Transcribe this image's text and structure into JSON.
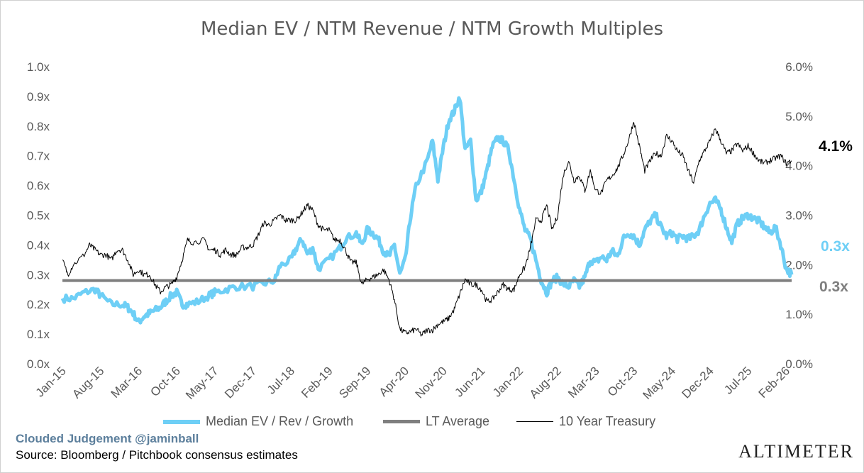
{
  "chart_data": {
    "type": "line",
    "title": "Median EV / NTM Revenue / NTM Growth Multiples",
    "x_tick_labels": [
      "Jan-15",
      "Aug-15",
      "Mar-16",
      "Oct-16",
      "May-17",
      "Dec-17",
      "Jul-18",
      "Feb-19",
      "Sep-19",
      "Apr-20",
      "Nov-20",
      "Jun-21",
      "Jan-22",
      "Aug-22",
      "Mar-23",
      "Oct-23",
      "May-24",
      "Dec-24",
      "Jul-25",
      "Feb-26"
    ],
    "x_range": [
      "Jan-15",
      "Mar-26"
    ],
    "y_left": {
      "range": [
        0,
        1.0
      ],
      "tick_labels": [
        "0.0x",
        "0.1x",
        "0.2x",
        "0.3x",
        "0.4x",
        "0.5x",
        "0.6x",
        "0.7x",
        "0.8x",
        "0.9x",
        "1.0x"
      ]
    },
    "y_right": {
      "range": [
        0,
        6.0
      ],
      "tick_labels": [
        "0.0%",
        "1.0%",
        "2.0%",
        "3.0%",
        "4.0%",
        "5.0%",
        "6.0%"
      ]
    },
    "grid": false,
    "legend_position": "bottom",
    "series": [
      {
        "name": "Median EV / Rev / Growth",
        "axis": "left",
        "color": "#6ecff6",
        "points": [
          [
            "Jan-15",
            0.22
          ],
          [
            "Mar-15",
            0.22
          ],
          [
            "May-15",
            0.24
          ],
          [
            "Jul-15",
            0.25
          ],
          [
            "Aug-15",
            0.23
          ],
          [
            "Oct-15",
            0.2
          ],
          [
            "Dec-15",
            0.2
          ],
          [
            "Jan-16",
            0.19
          ],
          [
            "Feb-16",
            0.17
          ],
          [
            "Mar-16",
            0.14
          ],
          [
            "Apr-16",
            0.16
          ],
          [
            "May-16",
            0.17
          ],
          [
            "Jun-16",
            0.18
          ],
          [
            "Jul-16",
            0.19
          ],
          [
            "Aug-16",
            0.21
          ],
          [
            "Sep-16",
            0.23
          ],
          [
            "Oct-16",
            0.24
          ],
          [
            "Nov-16",
            0.2
          ],
          [
            "Dec-16",
            0.2
          ],
          [
            "Feb-17",
            0.21
          ],
          [
            "Apr-17",
            0.23
          ],
          [
            "May-17",
            0.24
          ],
          [
            "Jul-17",
            0.25
          ],
          [
            "Sep-17",
            0.26
          ],
          [
            "Dec-17",
            0.26
          ],
          [
            "Feb-18",
            0.27
          ],
          [
            "Apr-18",
            0.28
          ],
          [
            "May-18",
            0.33
          ],
          [
            "Jul-18",
            0.35
          ],
          [
            "Aug-18",
            0.39
          ],
          [
            "Sep-18",
            0.42
          ],
          [
            "Oct-18",
            0.37
          ],
          [
            "Nov-18",
            0.39
          ],
          [
            "Dec-18",
            0.32
          ],
          [
            "Feb-19",
            0.35
          ],
          [
            "Apr-19",
            0.39
          ],
          [
            "May-19",
            0.42
          ],
          [
            "Jul-19",
            0.44
          ],
          [
            "Aug-19",
            0.4
          ],
          [
            "Sep-19",
            0.45
          ],
          [
            "Oct-19",
            0.44
          ],
          [
            "Nov-19",
            0.42
          ],
          [
            "Dec-19",
            0.38
          ],
          [
            "Jan-20",
            0.36
          ],
          [
            "Feb-20",
            0.4
          ],
          [
            "Mar-20",
            0.3
          ],
          [
            "Apr-20",
            0.35
          ],
          [
            "May-20",
            0.5
          ],
          [
            "Jun-20",
            0.6
          ],
          [
            "Aug-20",
            0.68
          ],
          [
            "Sep-20",
            0.75
          ],
          [
            "Oct-20",
            0.62
          ],
          [
            "Nov-20",
            0.73
          ],
          [
            "Dec-20",
            0.82
          ],
          [
            "Jan-21",
            0.85
          ],
          [
            "Feb-21",
            0.9
          ],
          [
            "Mar-21",
            0.72
          ],
          [
            "Apr-21",
            0.75
          ],
          [
            "May-21",
            0.55
          ],
          [
            "Jun-21",
            0.58
          ],
          [
            "Jul-21",
            0.65
          ],
          [
            "Aug-21",
            0.73
          ],
          [
            "Sep-21",
            0.76
          ],
          [
            "Oct-21",
            0.75
          ],
          [
            "Nov-21",
            0.72
          ],
          [
            "Dec-21",
            0.62
          ],
          [
            "Jan-22",
            0.52
          ],
          [
            "Feb-22",
            0.45
          ],
          [
            "Mar-22",
            0.42
          ],
          [
            "Apr-22",
            0.35
          ],
          [
            "May-22",
            0.28
          ],
          [
            "Jun-22",
            0.24
          ],
          [
            "Jul-22",
            0.28
          ],
          [
            "Aug-22",
            0.29
          ],
          [
            "Sep-22",
            0.27
          ],
          [
            "Oct-22",
            0.26
          ],
          [
            "Nov-22",
            0.28
          ],
          [
            "Dec-22",
            0.26
          ],
          [
            "Jan-23",
            0.29
          ],
          [
            "Feb-23",
            0.35
          ],
          [
            "Mar-23",
            0.34
          ],
          [
            "Apr-23",
            0.36
          ],
          [
            "May-23",
            0.35
          ],
          [
            "Jun-23",
            0.38
          ],
          [
            "Jul-23",
            0.36
          ],
          [
            "Aug-23",
            0.42
          ],
          [
            "Sep-23",
            0.44
          ],
          [
            "Oct-23",
            0.43
          ],
          [
            "Nov-23",
            0.4
          ],
          [
            "Dec-23",
            0.45
          ],
          [
            "Jan-24",
            0.48
          ],
          [
            "Feb-24",
            0.5
          ],
          [
            "Mar-24",
            0.46
          ],
          [
            "Apr-24",
            0.43
          ],
          [
            "May-24",
            0.44
          ],
          [
            "Jun-24",
            0.42
          ],
          [
            "Jul-24",
            0.43
          ],
          [
            "Aug-24",
            0.42
          ],
          [
            "Sep-24",
            0.43
          ],
          [
            "Oct-24",
            0.45
          ],
          [
            "Nov-24",
            0.5
          ],
          [
            "Dec-24",
            0.54
          ],
          [
            "Jan-25",
            0.55
          ],
          [
            "Feb-25",
            0.52
          ],
          [
            "Mar-25",
            0.46
          ],
          [
            "Apr-25",
            0.41
          ],
          [
            "May-25",
            0.47
          ],
          [
            "Jun-25",
            0.49
          ],
          [
            "Jul-25",
            0.5
          ],
          [
            "Aug-25",
            0.49
          ],
          [
            "Sep-25",
            0.48
          ],
          [
            "Oct-25",
            0.46
          ],
          [
            "Nov-25",
            0.44
          ],
          [
            "Dec-25",
            0.46
          ],
          [
            "Jan-26",
            0.4
          ],
          [
            "Feb-26",
            0.32
          ],
          [
            "Mar-26",
            0.3
          ]
        ],
        "end_label": "0.3x"
      },
      {
        "name": "LT Average",
        "axis": "left",
        "color": "#7f7f7f",
        "points": [
          [
            "Jan-15",
            0.28
          ],
          [
            "Mar-26",
            0.28
          ]
        ],
        "end_label": "0.3x"
      },
      {
        "name": "10 Year Treasury",
        "axis": "right",
        "color": "#000000",
        "points": [
          [
            "Jan-15",
            2.1
          ],
          [
            "Feb-15",
            1.8
          ],
          [
            "Mar-15",
            2.0
          ],
          [
            "May-15",
            2.2
          ],
          [
            "Jun-15",
            2.4
          ],
          [
            "Jul-15",
            2.3
          ],
          [
            "Aug-15",
            2.2
          ],
          [
            "Sep-15",
            2.2
          ],
          [
            "Oct-15",
            2.1
          ],
          [
            "Nov-15",
            2.3
          ],
          [
            "Dec-15",
            2.3
          ],
          [
            "Jan-16",
            2.1
          ],
          [
            "Feb-16",
            1.8
          ],
          [
            "Mar-16",
            1.9
          ],
          [
            "Apr-16",
            1.8
          ],
          [
            "May-16",
            1.8
          ],
          [
            "Jun-16",
            1.6
          ],
          [
            "Jul-16",
            1.45
          ],
          [
            "Aug-16",
            1.55
          ],
          [
            "Sep-16",
            1.6
          ],
          [
            "Oct-16",
            1.75
          ],
          [
            "Nov-16",
            2.1
          ],
          [
            "Dec-16",
            2.5
          ],
          [
            "Jan-17",
            2.45
          ],
          [
            "Mar-17",
            2.5
          ],
          [
            "Apr-17",
            2.3
          ],
          [
            "May-17",
            2.3
          ],
          [
            "Jun-17",
            2.2
          ],
          [
            "Jul-17",
            2.3
          ],
          [
            "Aug-17",
            2.2
          ],
          [
            "Sep-17",
            2.2
          ],
          [
            "Oct-17",
            2.35
          ],
          [
            "Nov-17",
            2.35
          ],
          [
            "Dec-17",
            2.4
          ],
          [
            "Jan-18",
            2.6
          ],
          [
            "Feb-18",
            2.85
          ],
          [
            "Mar-18",
            2.8
          ],
          [
            "Apr-18",
            2.9
          ],
          [
            "May-18",
            3.0
          ],
          [
            "Jun-18",
            2.9
          ],
          [
            "Jul-18",
            2.9
          ],
          [
            "Aug-18",
            2.9
          ],
          [
            "Sep-18",
            3.05
          ],
          [
            "Oct-18",
            3.2
          ],
          [
            "Nov-18",
            3.1
          ],
          [
            "Dec-18",
            2.8
          ],
          [
            "Jan-19",
            2.7
          ],
          [
            "Feb-19",
            2.7
          ],
          [
            "Mar-19",
            2.5
          ],
          [
            "Apr-19",
            2.5
          ],
          [
            "May-19",
            2.3
          ],
          [
            "Jun-19",
            2.05
          ],
          [
            "Jul-19",
            2.05
          ],
          [
            "Aug-19",
            1.6
          ],
          [
            "Sep-19",
            1.7
          ],
          [
            "Oct-19",
            1.75
          ],
          [
            "Nov-19",
            1.8
          ],
          [
            "Dec-19",
            1.9
          ],
          [
            "Jan-20",
            1.7
          ],
          [
            "Feb-20",
            1.3
          ],
          [
            "Mar-20",
            0.7
          ],
          [
            "Apr-20",
            0.62
          ],
          [
            "May-20",
            0.65
          ],
          [
            "Jun-20",
            0.7
          ],
          [
            "Jul-20",
            0.58
          ],
          [
            "Aug-20",
            0.68
          ],
          [
            "Sep-20",
            0.68
          ],
          [
            "Oct-20",
            0.8
          ],
          [
            "Nov-20",
            0.85
          ],
          [
            "Dec-20",
            0.92
          ],
          [
            "Jan-21",
            1.1
          ],
          [
            "Feb-21",
            1.4
          ],
          [
            "Mar-21",
            1.7
          ],
          [
            "Apr-21",
            1.6
          ],
          [
            "May-21",
            1.6
          ],
          [
            "Jun-21",
            1.5
          ],
          [
            "Jul-21",
            1.25
          ],
          [
            "Aug-21",
            1.3
          ],
          [
            "Sep-21",
            1.45
          ],
          [
            "Oct-21",
            1.6
          ],
          [
            "Nov-21",
            1.5
          ],
          [
            "Dec-21",
            1.5
          ],
          [
            "Jan-22",
            1.8
          ],
          [
            "Feb-22",
            1.95
          ],
          [
            "Mar-22",
            2.35
          ],
          [
            "Apr-22",
            2.9
          ],
          [
            "May-22",
            2.9
          ],
          [
            "Jun-22",
            3.2
          ],
          [
            "Jul-22",
            2.7
          ],
          [
            "Aug-22",
            3.0
          ],
          [
            "Sep-22",
            3.8
          ],
          [
            "Oct-22",
            4.1
          ],
          [
            "Nov-22",
            3.7
          ],
          [
            "Dec-22",
            3.8
          ],
          [
            "Jan-23",
            3.5
          ],
          [
            "Feb-23",
            3.9
          ],
          [
            "Mar-23",
            3.5
          ],
          [
            "Apr-23",
            3.45
          ],
          [
            "May-23",
            3.7
          ],
          [
            "Jun-23",
            3.8
          ],
          [
            "Jul-23",
            3.95
          ],
          [
            "Aug-23",
            4.2
          ],
          [
            "Sep-23",
            4.5
          ],
          [
            "Oct-23",
            4.9
          ],
          [
            "Nov-23",
            4.4
          ],
          [
            "Dec-23",
            3.9
          ],
          [
            "Jan-24",
            4.1
          ],
          [
            "Feb-24",
            4.25
          ],
          [
            "Mar-24",
            4.2
          ],
          [
            "Apr-24",
            4.6
          ],
          [
            "May-24",
            4.5
          ],
          [
            "Jun-24",
            4.3
          ],
          [
            "Jul-24",
            4.2
          ],
          [
            "Aug-24",
            3.9
          ],
          [
            "Sep-24",
            3.65
          ],
          [
            "Oct-24",
            4.1
          ],
          [
            "Nov-24",
            4.3
          ],
          [
            "Dec-24",
            4.5
          ],
          [
            "Jan-25",
            4.75
          ],
          [
            "Feb-25",
            4.5
          ],
          [
            "Mar-25",
            4.25
          ],
          [
            "Apr-25",
            4.3
          ],
          [
            "May-25",
            4.45
          ],
          [
            "Jun-25",
            4.3
          ],
          [
            "Jul-25",
            4.4
          ],
          [
            "Aug-25",
            4.25
          ],
          [
            "Sep-25",
            4.1
          ],
          [
            "Oct-25",
            4.05
          ],
          [
            "Nov-25",
            4.1
          ],
          [
            "Dec-25",
            4.15
          ],
          [
            "Jan-26",
            4.2
          ],
          [
            "Feb-26",
            4.05
          ],
          [
            "Mar-26",
            4.1
          ]
        ],
        "end_label": "4.1%"
      }
    ]
  },
  "footer": {
    "brand": "Clouded Judgement @jaminball",
    "source": "Source: Bloomberg / Pitchbook consensus estimates",
    "logo": "ALTIMETER"
  }
}
